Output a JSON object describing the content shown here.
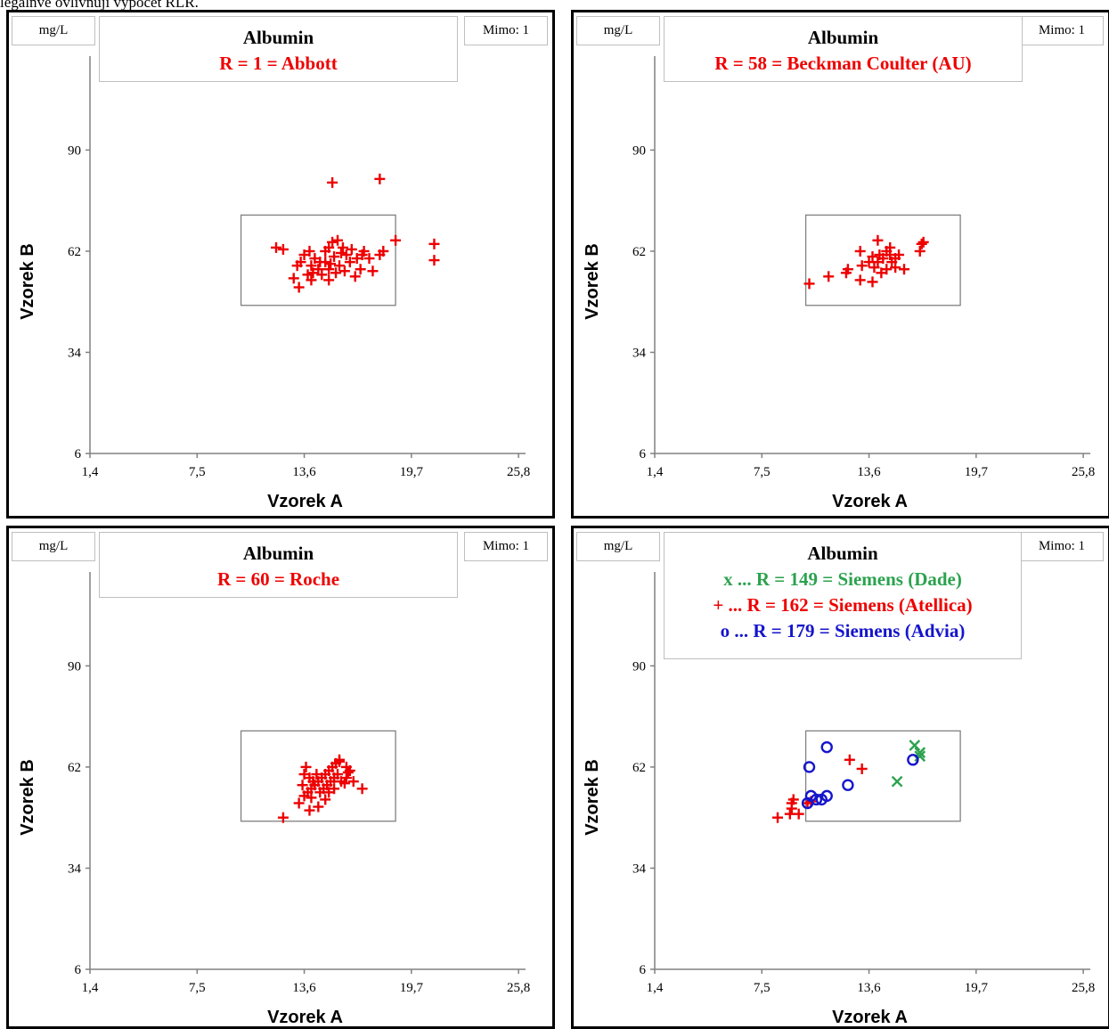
{
  "intro_text": "legalnvé ovlivňují výpočet RLR.",
  "chart_data": [
    {
      "type": "scatter",
      "unit": "mg/L",
      "title": "Albumin",
      "subtitle_lines": [
        {
          "text": "R = 1 = Abbott",
          "color": "#ee0000"
        }
      ],
      "mimo": "Mimo: 1",
      "xlabel": "Vzorek A",
      "ylabel": "Vzorek B",
      "x_ticks": [
        "1,4",
        "7,5",
        "13,6",
        "19,7",
        "25,8"
      ],
      "y_ticks": [
        "6",
        "34",
        "62",
        "90"
      ],
      "xlim": [
        1.4,
        26.2
      ],
      "ylim": [
        6,
        116
      ],
      "target_box": {
        "x": [
          10.0,
          18.8
        ],
        "y": [
          47,
          72
        ]
      },
      "series": [
        {
          "marker": "plus",
          "color": "#ee0000",
          "points": [
            [
              15.2,
              81
            ],
            [
              17.9,
              82
            ],
            [
              12.0,
              63
            ],
            [
              12.4,
              62.5
            ],
            [
              13.6,
              61
            ],
            [
              13.9,
              62
            ],
            [
              14.2,
              60
            ],
            [
              14.5,
              59
            ],
            [
              14.8,
              62
            ],
            [
              15.0,
              63
            ],
            [
              15.2,
              64.5
            ],
            [
              15.5,
              65
            ],
            [
              15.8,
              63
            ],
            [
              16.0,
              61
            ],
            [
              14.0,
              58
            ],
            [
              14.4,
              57
            ],
            [
              15.0,
              57
            ],
            [
              15.6,
              58
            ],
            [
              16.2,
              59
            ],
            [
              16.6,
              60
            ],
            [
              16.9,
              61
            ],
            [
              17.3,
              60
            ],
            [
              17.9,
              61
            ],
            [
              18.1,
              62
            ],
            [
              16.8,
              57
            ],
            [
              15.4,
              56
            ],
            [
              14.1,
              56
            ],
            [
              13.4,
              59
            ],
            [
              13.2,
              58
            ],
            [
              15.9,
              56.5
            ],
            [
              17.5,
              56.5
            ],
            [
              15.0,
              54
            ],
            [
              14.6,
              55.5
            ],
            [
              16.5,
              55
            ],
            [
              13.0,
              54.5
            ],
            [
              14.0,
              54
            ],
            [
              14.8,
              59
            ],
            [
              15.3,
              60.5
            ],
            [
              17.0,
              62
            ],
            [
              18.8,
              65
            ],
            [
              21.0,
              64
            ],
            [
              21.0,
              59.5
            ],
            [
              15.7,
              61.5
            ],
            [
              16.3,
              62.5
            ],
            [
              13.8,
              55.5
            ],
            [
              13.3,
              52
            ],
            [
              15.1,
              58.5
            ]
          ]
        }
      ]
    },
    {
      "type": "scatter",
      "unit": "mg/L",
      "title": "Albumin",
      "subtitle_lines": [
        {
          "text": "R = 58 = Beckman Coulter (AU)",
          "color": "#ee0000"
        }
      ],
      "mimo": "Mimo: 1",
      "xlabel": "Vzorek A",
      "ylabel": "Vzorek B",
      "x_ticks": [
        "1,4",
        "7,5",
        "13,6",
        "19,7",
        "25,8"
      ],
      "y_ticks": [
        "6",
        "34",
        "62",
        "90"
      ],
      "xlim": [
        1.4,
        26.2
      ],
      "ylim": [
        6,
        116
      ],
      "target_box": {
        "x": [
          10.0,
          18.8
        ],
        "y": [
          47,
          72
        ]
      },
      "series": [
        {
          "marker": "plus",
          "color": "#ee0000",
          "points": [
            [
              10.2,
              53
            ],
            [
              11.3,
              55
            ],
            [
              12.3,
              56
            ],
            [
              12.4,
              57
            ],
            [
              13.1,
              62
            ],
            [
              13.2,
              58
            ],
            [
              13.6,
              59
            ],
            [
              13.8,
              60.5
            ],
            [
              14.1,
              59
            ],
            [
              14.2,
              61
            ],
            [
              14.4,
              60
            ],
            [
              14.6,
              62
            ],
            [
              14.8,
              61
            ],
            [
              14.9,
              59
            ],
            [
              15.1,
              60
            ],
            [
              15.3,
              61
            ],
            [
              14.1,
              65
            ],
            [
              13.9,
              57.5
            ],
            [
              14.6,
              57
            ],
            [
              15.1,
              57.5
            ],
            [
              15.6,
              57
            ],
            [
              16.5,
              62
            ],
            [
              16.6,
              64
            ],
            [
              16.7,
              64.5
            ],
            [
              14.8,
              63
            ],
            [
              13.1,
              54
            ],
            [
              13.8,
              53.5
            ],
            [
              14.3,
              56
            ]
          ]
        }
      ]
    },
    {
      "type": "scatter",
      "unit": "mg/L",
      "title": "Albumin",
      "subtitle_lines": [
        {
          "text": "R = 60 = Roche",
          "color": "#ee0000"
        }
      ],
      "mimo": "Mimo: 1",
      "xlabel": "Vzorek A",
      "ylabel": "Vzorek B",
      "x_ticks": [
        "1,4",
        "7,5",
        "13,6",
        "19,7",
        "25,8"
      ],
      "y_ticks": [
        "6",
        "34",
        "62",
        "90"
      ],
      "xlim": [
        1.4,
        26.2
      ],
      "ylim": [
        6,
        116
      ],
      "target_box": {
        "x": [
          10.0,
          18.8
        ],
        "y": [
          47,
          72
        ]
      },
      "series": [
        {
          "marker": "plus",
          "color": "#ee0000",
          "points": [
            [
              12.4,
              48
            ],
            [
              13.3,
              52
            ],
            [
              13.6,
              54
            ],
            [
              13.8,
              55
            ],
            [
              14.0,
              56
            ],
            [
              14.2,
              57
            ],
            [
              14.4,
              58
            ],
            [
              14.6,
              59
            ],
            [
              14.8,
              60
            ],
            [
              15.0,
              61
            ],
            [
              15.2,
              62
            ],
            [
              15.4,
              63
            ],
            [
              15.6,
              64
            ],
            [
              13.7,
              62
            ],
            [
              13.9,
              59
            ],
            [
              14.1,
              58
            ],
            [
              14.3,
              60
            ],
            [
              14.5,
              55
            ],
            [
              14.7,
              56
            ],
            [
              14.9,
              57
            ],
            [
              15.1,
              58
            ],
            [
              15.3,
              59
            ],
            [
              15.5,
              60
            ],
            [
              15.7,
              58
            ],
            [
              16.0,
              59
            ],
            [
              16.4,
              58
            ],
            [
              16.9,
              56
            ],
            [
              16.2,
              61
            ],
            [
              16.0,
              62
            ],
            [
              15.6,
              63.5
            ],
            [
              13.9,
              50
            ],
            [
              14.4,
              51
            ],
            [
              14.8,
              53
            ],
            [
              15.0,
              55
            ],
            [
              15.3,
              56
            ],
            [
              14.0,
              53.5
            ],
            [
              13.5,
              57
            ],
            [
              13.6,
              60
            ],
            [
              15.9,
              57.5
            ],
            [
              16.1,
              60.5
            ]
          ]
        }
      ]
    },
    {
      "type": "scatter",
      "unit": "mg/L",
      "title": "Albumin",
      "subtitle_lines": [
        {
          "text": "x ... R = 149 = Siemens (Dade)",
          "color": "#2ca24e"
        },
        {
          "text": "+ ... R = 162 = Siemens (Atellica)",
          "color": "#ee0000"
        },
        {
          "text": "o ... R = 179 = Siemens (Advia)",
          "color": "#1515cc"
        }
      ],
      "mimo": "Mimo: 1",
      "xlabel": "Vzorek A",
      "ylabel": "Vzorek B",
      "x_ticks": [
        "1,4",
        "7,5",
        "13,6",
        "19,7",
        "25,8"
      ],
      "y_ticks": [
        "6",
        "34",
        "62",
        "90"
      ],
      "xlim": [
        1.4,
        26.2
      ],
      "ylim": [
        6,
        116
      ],
      "target_box": {
        "x": [
          10.0,
          18.8
        ],
        "y": [
          47,
          72
        ]
      },
      "series": [
        {
          "name": "R = 149 = Siemens (Dade)",
          "marker": "x",
          "color": "#2ca24e",
          "points": [
            [
              15.2,
              58
            ],
            [
              16.2,
              68
            ],
            [
              16.5,
              66
            ],
            [
              16.5,
              65
            ]
          ]
        },
        {
          "name": "R = 162 = Siemens (Atellica)",
          "marker": "plus",
          "color": "#ee0000",
          "points": [
            [
              8.4,
              48
            ],
            [
              9.1,
              49
            ],
            [
              9.2,
              50.5
            ],
            [
              9.2,
              52
            ],
            [
              9.3,
              53
            ],
            [
              9.6,
              49
            ],
            [
              10.1,
              52
            ],
            [
              10.3,
              52.5
            ],
            [
              12.5,
              64
            ],
            [
              13.2,
              61.5
            ]
          ]
        },
        {
          "name": "R = 179 = Siemens (Advia)",
          "marker": "circle",
          "color": "#1515cc",
          "points": [
            [
              10.1,
              52
            ],
            [
              10.2,
              62
            ],
            [
              10.3,
              54
            ],
            [
              10.6,
              53
            ],
            [
              10.9,
              53
            ],
            [
              11.2,
              54
            ],
            [
              11.2,
              67.5
            ],
            [
              12.4,
              57
            ],
            [
              16.1,
              64
            ]
          ]
        }
      ]
    }
  ]
}
